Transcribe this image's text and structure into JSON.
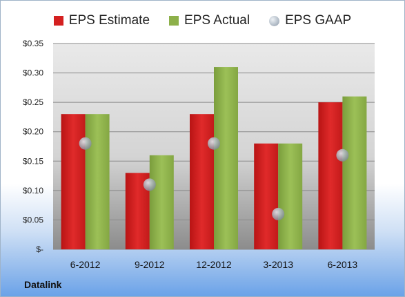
{
  "legend": {
    "estimate_label": "EPS Estimate",
    "actual_label": "EPS Actual",
    "gaap_label": "EPS GAAP"
  },
  "brand": "Datalink",
  "colors": {
    "estimate": "#d42020",
    "actual": "#8db04a",
    "gaap": "#b8c0c8"
  },
  "chart_data": {
    "type": "bar",
    "categories": [
      "6-2012",
      "9-2012",
      "12-2012",
      "3-2013",
      "6-2013"
    ],
    "series": [
      {
        "name": "EPS Estimate",
        "values": [
          0.23,
          0.13,
          0.23,
          0.18,
          0.25
        ]
      },
      {
        "name": "EPS Actual",
        "values": [
          0.23,
          0.16,
          0.31,
          0.18,
          0.26
        ]
      },
      {
        "name": "EPS GAAP",
        "values": [
          0.18,
          0.11,
          0.18,
          0.06,
          0.16
        ]
      }
    ],
    "ylim": [
      0,
      0.35
    ],
    "yticks": [
      {
        "value": 0.35,
        "label": "$0.35"
      },
      {
        "value": 0.3,
        "label": "$0.30"
      },
      {
        "value": 0.25,
        "label": "$0.25"
      },
      {
        "value": 0.2,
        "label": "$0.20"
      },
      {
        "value": 0.15,
        "label": "$0.15"
      },
      {
        "value": 0.1,
        "label": "$0.10"
      },
      {
        "value": 0.05,
        "label": "$0.05"
      },
      {
        "value": 0,
        "label": "$-"
      }
    ],
    "grid": true,
    "legend_position": "top"
  }
}
